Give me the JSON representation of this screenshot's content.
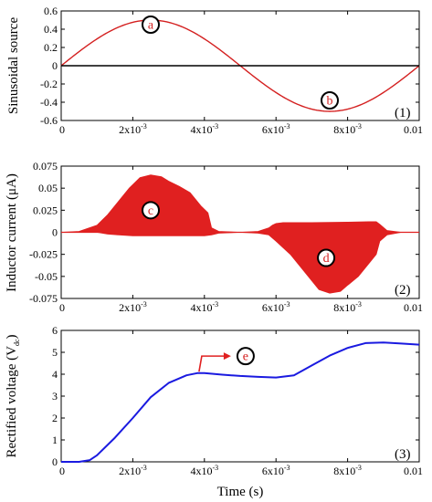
{
  "chart_data": [
    {
      "type": "line",
      "panel_label": "(1)",
      "ylabel": "Sinusoidal source",
      "xlim": [
        0,
        0.01
      ],
      "ylim": [
        -0.6,
        0.6
      ],
      "yticks": [
        "0.6",
        "0.4",
        "0.2",
        "0",
        "-0.2",
        "-0.4",
        "-0.6"
      ],
      "xticks": [
        {
          "base": "0",
          "exp": ""
        },
        {
          "base": "2x10",
          "exp": "-3"
        },
        {
          "base": "4x10",
          "exp": "-3"
        },
        {
          "base": "6x10",
          "exp": "-3"
        },
        {
          "base": "8x10",
          "exp": "-3"
        },
        {
          "base": "0.01",
          "exp": ""
        }
      ],
      "series": [
        {
          "color": "#d42020",
          "kind": "sine",
          "amplitude": 0.5,
          "frequency_hz": 100
        },
        {
          "color": "#000000",
          "kind": "constant",
          "value": 0
        }
      ],
      "markers": [
        {
          "letter": "a",
          "x": 0.0025,
          "y": 0.45
        },
        {
          "letter": "b",
          "x": 0.0075,
          "y": -0.38
        }
      ]
    },
    {
      "type": "area",
      "panel_label": "(2)",
      "ylabel": "Inductor current (μA)",
      "xlim": [
        0,
        0.01
      ],
      "ylim": [
        -0.075,
        0.075
      ],
      "yticks": [
        "0.075",
        "0.05",
        "0.025",
        "0",
        "-0.025",
        "-0.05",
        "-0.075"
      ],
      "xticks": [
        {
          "base": "0",
          "exp": ""
        },
        {
          "base": "2x10",
          "exp": "-3"
        },
        {
          "base": "4x10",
          "exp": "-3"
        },
        {
          "base": "6x10",
          "exp": "-3"
        },
        {
          "base": "8x10",
          "exp": "-3"
        },
        {
          "base": "0.01",
          "exp": ""
        }
      ],
      "color": "#e02020",
      "upper": [
        [
          0,
          0
        ],
        [
          0.0005,
          0.001
        ],
        [
          0.001,
          0.008
        ],
        [
          0.0013,
          0.02
        ],
        [
          0.0016,
          0.035
        ],
        [
          0.0019,
          0.05
        ],
        [
          0.0022,
          0.062
        ],
        [
          0.0025,
          0.065
        ],
        [
          0.0028,
          0.063
        ],
        [
          0.003,
          0.058
        ],
        [
          0.0033,
          0.052
        ],
        [
          0.0036,
          0.045
        ],
        [
          0.0039,
          0.03
        ],
        [
          0.0041,
          0.022
        ],
        [
          0.0042,
          0.005
        ],
        [
          0.0044,
          0.001
        ],
        [
          0.005,
          0
        ],
        [
          0.0055,
          0.001
        ],
        [
          0.0058,
          0.005
        ],
        [
          0.0059,
          0.008
        ],
        [
          0.006,
          0.01
        ],
        [
          0.0062,
          0.011
        ],
        [
          0.007,
          0.011
        ],
        [
          0.008,
          0.0115
        ],
        [
          0.0086,
          0.012
        ],
        [
          0.0088,
          0.012
        ],
        [
          0.0089,
          0.009
        ],
        [
          0.0091,
          0.002
        ],
        [
          0.0095,
          0
        ],
        [
          0.01,
          0
        ]
      ],
      "lower": [
        [
          0,
          0
        ],
        [
          0.001,
          0
        ],
        [
          0.0013,
          -0.002
        ],
        [
          0.0016,
          -0.003
        ],
        [
          0.002,
          -0.004
        ],
        [
          0.003,
          -0.004
        ],
        [
          0.0035,
          -0.004
        ],
        [
          0.004,
          -0.004
        ],
        [
          0.0042,
          -0.003
        ],
        [
          0.0044,
          -0.001
        ],
        [
          0.005,
          0
        ],
        [
          0.0055,
          -0.001
        ],
        [
          0.0058,
          -0.003
        ],
        [
          0.006,
          -0.01
        ],
        [
          0.0064,
          -0.025
        ],
        [
          0.0067,
          -0.04
        ],
        [
          0.007,
          -0.055
        ],
        [
          0.0072,
          -0.065
        ],
        [
          0.0075,
          -0.069
        ],
        [
          0.0078,
          -0.067
        ],
        [
          0.008,
          -0.06
        ],
        [
          0.0083,
          -0.05
        ],
        [
          0.0086,
          -0.035
        ],
        [
          0.0088,
          -0.025
        ],
        [
          0.0089,
          -0.01
        ],
        [
          0.0091,
          -0.003
        ],
        [
          0.0095,
          0
        ],
        [
          0.01,
          0
        ]
      ],
      "markers": [
        {
          "letter": "c",
          "x": 0.0025,
          "y": 0.025
        },
        {
          "letter": "d",
          "x": 0.0074,
          "y": -0.029
        }
      ]
    },
    {
      "type": "line",
      "panel_label": "(3)",
      "ylabel": "Rectified voltage (V",
      "ylabel_sub": "dc",
      "ylabel_end": ")",
      "xlabel": "Time (s)",
      "xlim": [
        0,
        0.01
      ],
      "ylim": [
        0,
        6
      ],
      "yticks": [
        "6",
        "5",
        "4",
        "3",
        "2",
        "1",
        "0"
      ],
      "xticks": [
        {
          "base": "0",
          "exp": ""
        },
        {
          "base": "2x10",
          "exp": "-3"
        },
        {
          "base": "4x10",
          "exp": "-3"
        },
        {
          "base": "6x10",
          "exp": "-3"
        },
        {
          "base": "8x10",
          "exp": "-3"
        },
        {
          "base": "0.01",
          "exp": ""
        }
      ],
      "series": [
        {
          "color": "#1a1ae0",
          "points": [
            [
              0,
              0
            ],
            [
              0.0005,
              0
            ],
            [
              0.0008,
              0.08
            ],
            [
              0.001,
              0.3
            ],
            [
              0.0015,
              1.1
            ],
            [
              0.002,
              2.0
            ],
            [
              0.0025,
              2.95
            ],
            [
              0.003,
              3.6
            ],
            [
              0.0035,
              3.95
            ],
            [
              0.0038,
              4.05
            ],
            [
              0.004,
              4.05
            ],
            [
              0.0045,
              3.98
            ],
            [
              0.005,
              3.92
            ],
            [
              0.0055,
              3.88
            ],
            [
              0.006,
              3.85
            ],
            [
              0.0065,
              3.95
            ],
            [
              0.007,
              4.4
            ],
            [
              0.0075,
              4.85
            ],
            [
              0.008,
              5.2
            ],
            [
              0.0085,
              5.42
            ],
            [
              0.009,
              5.45
            ],
            [
              0.0095,
              5.4
            ],
            [
              0.01,
              5.35
            ]
          ]
        }
      ],
      "annotation": {
        "letter": "e",
        "arrow_color": "#e02020"
      }
    }
  ]
}
